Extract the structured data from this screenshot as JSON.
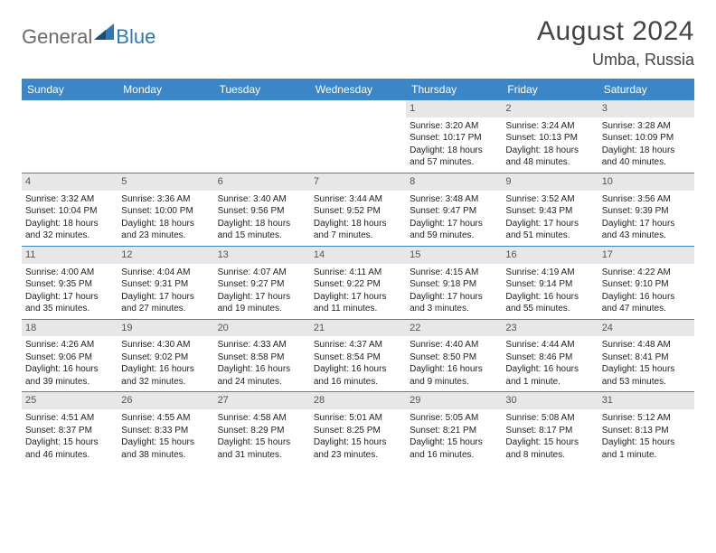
{
  "logo": {
    "part1": "General",
    "part2": "Blue"
  },
  "title": {
    "month": "August 2024",
    "location": "Umba, Russia"
  },
  "colors": {
    "header_bg": "#3b86c6",
    "header_text": "#ffffff",
    "daynum_bg": "#e7e7e7",
    "border": "#3b86c6",
    "logo_blue": "#2f77b8",
    "logo_gray": "#6b6b6b"
  },
  "weekdays": [
    "Sunday",
    "Monday",
    "Tuesday",
    "Wednesday",
    "Thursday",
    "Friday",
    "Saturday"
  ],
  "weeks": [
    [
      {
        "n": "",
        "sr": "",
        "ss": "",
        "dl1": "",
        "dl2": ""
      },
      {
        "n": "",
        "sr": "",
        "ss": "",
        "dl1": "",
        "dl2": ""
      },
      {
        "n": "",
        "sr": "",
        "ss": "",
        "dl1": "",
        "dl2": ""
      },
      {
        "n": "",
        "sr": "",
        "ss": "",
        "dl1": "",
        "dl2": ""
      },
      {
        "n": "1",
        "sr": "Sunrise: 3:20 AM",
        "ss": "Sunset: 10:17 PM",
        "dl1": "Daylight: 18 hours",
        "dl2": "and 57 minutes."
      },
      {
        "n": "2",
        "sr": "Sunrise: 3:24 AM",
        "ss": "Sunset: 10:13 PM",
        "dl1": "Daylight: 18 hours",
        "dl2": "and 48 minutes."
      },
      {
        "n": "3",
        "sr": "Sunrise: 3:28 AM",
        "ss": "Sunset: 10:09 PM",
        "dl1": "Daylight: 18 hours",
        "dl2": "and 40 minutes."
      }
    ],
    [
      {
        "n": "4",
        "sr": "Sunrise: 3:32 AM",
        "ss": "Sunset: 10:04 PM",
        "dl1": "Daylight: 18 hours",
        "dl2": "and 32 minutes."
      },
      {
        "n": "5",
        "sr": "Sunrise: 3:36 AM",
        "ss": "Sunset: 10:00 PM",
        "dl1": "Daylight: 18 hours",
        "dl2": "and 23 minutes."
      },
      {
        "n": "6",
        "sr": "Sunrise: 3:40 AM",
        "ss": "Sunset: 9:56 PM",
        "dl1": "Daylight: 18 hours",
        "dl2": "and 15 minutes."
      },
      {
        "n": "7",
        "sr": "Sunrise: 3:44 AM",
        "ss": "Sunset: 9:52 PM",
        "dl1": "Daylight: 18 hours",
        "dl2": "and 7 minutes."
      },
      {
        "n": "8",
        "sr": "Sunrise: 3:48 AM",
        "ss": "Sunset: 9:47 PM",
        "dl1": "Daylight: 17 hours",
        "dl2": "and 59 minutes."
      },
      {
        "n": "9",
        "sr": "Sunrise: 3:52 AM",
        "ss": "Sunset: 9:43 PM",
        "dl1": "Daylight: 17 hours",
        "dl2": "and 51 minutes."
      },
      {
        "n": "10",
        "sr": "Sunrise: 3:56 AM",
        "ss": "Sunset: 9:39 PM",
        "dl1": "Daylight: 17 hours",
        "dl2": "and 43 minutes."
      }
    ],
    [
      {
        "n": "11",
        "sr": "Sunrise: 4:00 AM",
        "ss": "Sunset: 9:35 PM",
        "dl1": "Daylight: 17 hours",
        "dl2": "and 35 minutes."
      },
      {
        "n": "12",
        "sr": "Sunrise: 4:04 AM",
        "ss": "Sunset: 9:31 PM",
        "dl1": "Daylight: 17 hours",
        "dl2": "and 27 minutes."
      },
      {
        "n": "13",
        "sr": "Sunrise: 4:07 AM",
        "ss": "Sunset: 9:27 PM",
        "dl1": "Daylight: 17 hours",
        "dl2": "and 19 minutes."
      },
      {
        "n": "14",
        "sr": "Sunrise: 4:11 AM",
        "ss": "Sunset: 9:22 PM",
        "dl1": "Daylight: 17 hours",
        "dl2": "and 11 minutes."
      },
      {
        "n": "15",
        "sr": "Sunrise: 4:15 AM",
        "ss": "Sunset: 9:18 PM",
        "dl1": "Daylight: 17 hours",
        "dl2": "and 3 minutes."
      },
      {
        "n": "16",
        "sr": "Sunrise: 4:19 AM",
        "ss": "Sunset: 9:14 PM",
        "dl1": "Daylight: 16 hours",
        "dl2": "and 55 minutes."
      },
      {
        "n": "17",
        "sr": "Sunrise: 4:22 AM",
        "ss": "Sunset: 9:10 PM",
        "dl1": "Daylight: 16 hours",
        "dl2": "and 47 minutes."
      }
    ],
    [
      {
        "n": "18",
        "sr": "Sunrise: 4:26 AM",
        "ss": "Sunset: 9:06 PM",
        "dl1": "Daylight: 16 hours",
        "dl2": "and 39 minutes."
      },
      {
        "n": "19",
        "sr": "Sunrise: 4:30 AM",
        "ss": "Sunset: 9:02 PM",
        "dl1": "Daylight: 16 hours",
        "dl2": "and 32 minutes."
      },
      {
        "n": "20",
        "sr": "Sunrise: 4:33 AM",
        "ss": "Sunset: 8:58 PM",
        "dl1": "Daylight: 16 hours",
        "dl2": "and 24 minutes."
      },
      {
        "n": "21",
        "sr": "Sunrise: 4:37 AM",
        "ss": "Sunset: 8:54 PM",
        "dl1": "Daylight: 16 hours",
        "dl2": "and 16 minutes."
      },
      {
        "n": "22",
        "sr": "Sunrise: 4:40 AM",
        "ss": "Sunset: 8:50 PM",
        "dl1": "Daylight: 16 hours",
        "dl2": "and 9 minutes."
      },
      {
        "n": "23",
        "sr": "Sunrise: 4:44 AM",
        "ss": "Sunset: 8:46 PM",
        "dl1": "Daylight: 16 hours",
        "dl2": "and 1 minute."
      },
      {
        "n": "24",
        "sr": "Sunrise: 4:48 AM",
        "ss": "Sunset: 8:41 PM",
        "dl1": "Daylight: 15 hours",
        "dl2": "and 53 minutes."
      }
    ],
    [
      {
        "n": "25",
        "sr": "Sunrise: 4:51 AM",
        "ss": "Sunset: 8:37 PM",
        "dl1": "Daylight: 15 hours",
        "dl2": "and 46 minutes."
      },
      {
        "n": "26",
        "sr": "Sunrise: 4:55 AM",
        "ss": "Sunset: 8:33 PM",
        "dl1": "Daylight: 15 hours",
        "dl2": "and 38 minutes."
      },
      {
        "n": "27",
        "sr": "Sunrise: 4:58 AM",
        "ss": "Sunset: 8:29 PM",
        "dl1": "Daylight: 15 hours",
        "dl2": "and 31 minutes."
      },
      {
        "n": "28",
        "sr": "Sunrise: 5:01 AM",
        "ss": "Sunset: 8:25 PM",
        "dl1": "Daylight: 15 hours",
        "dl2": "and 23 minutes."
      },
      {
        "n": "29",
        "sr": "Sunrise: 5:05 AM",
        "ss": "Sunset: 8:21 PM",
        "dl1": "Daylight: 15 hours",
        "dl2": "and 16 minutes."
      },
      {
        "n": "30",
        "sr": "Sunrise: 5:08 AM",
        "ss": "Sunset: 8:17 PM",
        "dl1": "Daylight: 15 hours",
        "dl2": "and 8 minutes."
      },
      {
        "n": "31",
        "sr": "Sunrise: 5:12 AM",
        "ss": "Sunset: 8:13 PM",
        "dl1": "Daylight: 15 hours",
        "dl2": "and 1 minute."
      }
    ]
  ]
}
